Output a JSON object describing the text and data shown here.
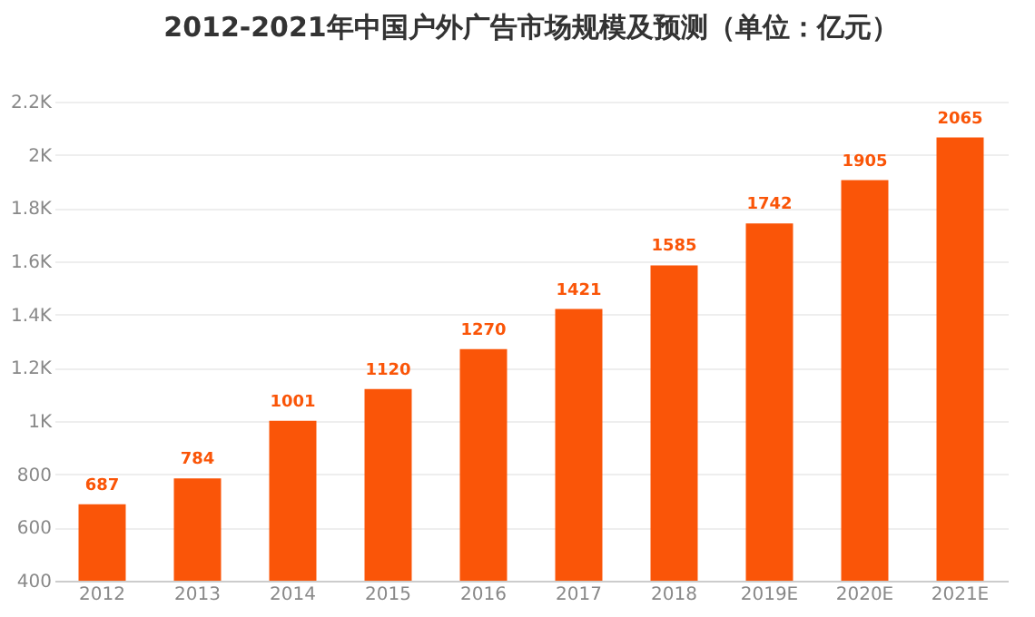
{
  "chart_data": {
    "type": "bar",
    "title": "2012-2021年中国户外广告市场规模及预测（单位：亿元）",
    "categories": [
      "2012",
      "2013",
      "2014",
      "2015",
      "2016",
      "2017",
      "2018",
      "2019E",
      "2020E",
      "2021E"
    ],
    "values": [
      687,
      784,
      1001,
      1120,
      1270,
      1421,
      1585,
      1742,
      1905,
      2065
    ],
    "color": "#fa5508",
    "data_labels": true,
    "grid": "y",
    "ylim": [
      400,
      2200
    ],
    "yticks": [
      400,
      600,
      800,
      {
        "value": 1000,
        "label": "1K"
      },
      {
        "value": 1200,
        "label": "1.2K"
      },
      {
        "value": 1400,
        "label": "1.4K"
      },
      {
        "value": 1600,
        "label": "1.6K"
      },
      {
        "value": 1800,
        "label": "1.8K"
      },
      {
        "value": 2000,
        "label": "2K"
      },
      {
        "value": 2200,
        "label": "2.2K"
      }
    ]
  }
}
